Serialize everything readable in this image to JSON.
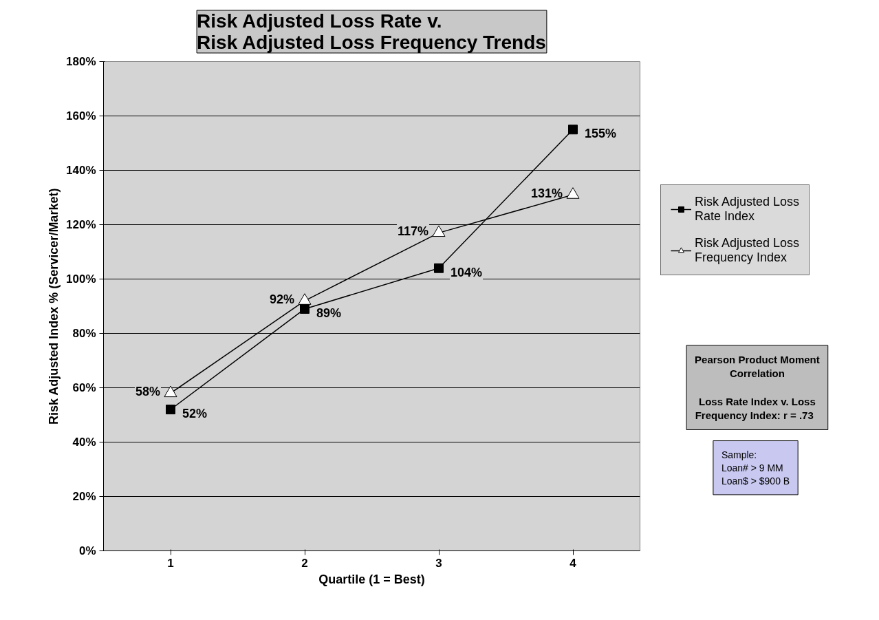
{
  "chart_data": {
    "type": "line",
    "title": "Risk Adjusted Loss Rate v.\nRisk Adjusted Loss Frequency Trends",
    "xlabel": "Quartile (1 = Best)",
    "ylabel": "Risk Adjusted Index % (Servicer/Market)",
    "categories": [
      "1",
      "2",
      "3",
      "4"
    ],
    "series": [
      {
        "name": "Risk Adjusted Loss Rate Index",
        "color": "#000000",
        "marker": "square",
        "values": [
          52,
          89,
          104,
          155
        ],
        "value_labels": [
          "52%",
          "89%",
          "104%",
          "155%"
        ]
      },
      {
        "name": "Risk Adjusted Loss Frequency Index",
        "color": "#000000",
        "marker": "triangle",
        "values": [
          58,
          92,
          117,
          131
        ],
        "value_labels": [
          "58%",
          "92%",
          "117%",
          "131%"
        ]
      }
    ],
    "ylim": [
      0,
      180
    ],
    "yticks": [
      {
        "value": 0,
        "label": "0%"
      },
      {
        "value": 20,
        "label": "20%"
      },
      {
        "value": 40,
        "label": "40%"
      },
      {
        "value": 60,
        "label": "60%"
      },
      {
        "value": 80,
        "label": "80%"
      },
      {
        "value": 100,
        "label": "100%"
      },
      {
        "value": 120,
        "label": "120%"
      },
      {
        "value": 140,
        "label": "140%"
      },
      {
        "value": 160,
        "label": "160%"
      },
      {
        "value": 180,
        "label": "180%"
      }
    ],
    "grid": "y",
    "legend": "right",
    "line_style": "solid",
    "annotations": [
      "Pearson Product Moment\nCorrelation\n\nLoss Rate Index v. Loss\nFrequency Index:  r  = .73",
      "Sample:\nLoan# > 9 MM\nLoan$ > $900 B"
    ]
  }
}
